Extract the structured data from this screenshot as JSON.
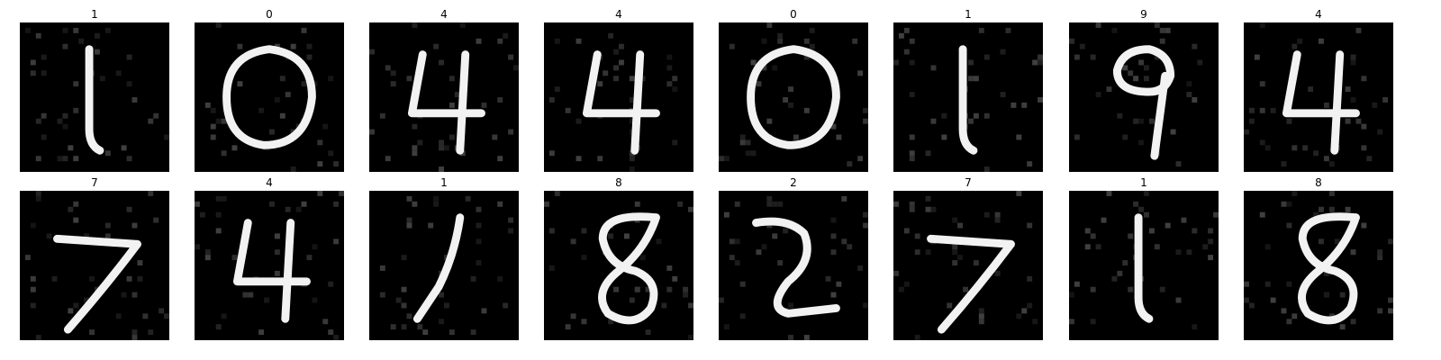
{
  "digits": [
    {
      "label": "1",
      "glyph": "one-upright"
    },
    {
      "label": "0",
      "glyph": "zero-loop"
    },
    {
      "label": "4",
      "glyph": "four-open"
    },
    {
      "label": "4",
      "glyph": "four-open"
    },
    {
      "label": "0",
      "glyph": "zero-loop"
    },
    {
      "label": "1",
      "glyph": "one-upright"
    },
    {
      "label": "9",
      "glyph": "nine-loop"
    },
    {
      "label": "4",
      "glyph": "four-open"
    },
    {
      "label": "7",
      "glyph": "seven-slant"
    },
    {
      "label": "4",
      "glyph": "four-open"
    },
    {
      "label": "1",
      "glyph": "one-slant"
    },
    {
      "label": "8",
      "glyph": "eight-loops"
    },
    {
      "label": "2",
      "glyph": "two-curve"
    },
    {
      "label": "7",
      "glyph": "seven-slant"
    },
    {
      "label": "1",
      "glyph": "one-upright"
    },
    {
      "label": "8",
      "glyph": "eight-loops"
    }
  ],
  "colors": {
    "background": "#ffffff",
    "tile": "#000000",
    "stroke": "#f2f2f2",
    "label": "#000000"
  }
}
